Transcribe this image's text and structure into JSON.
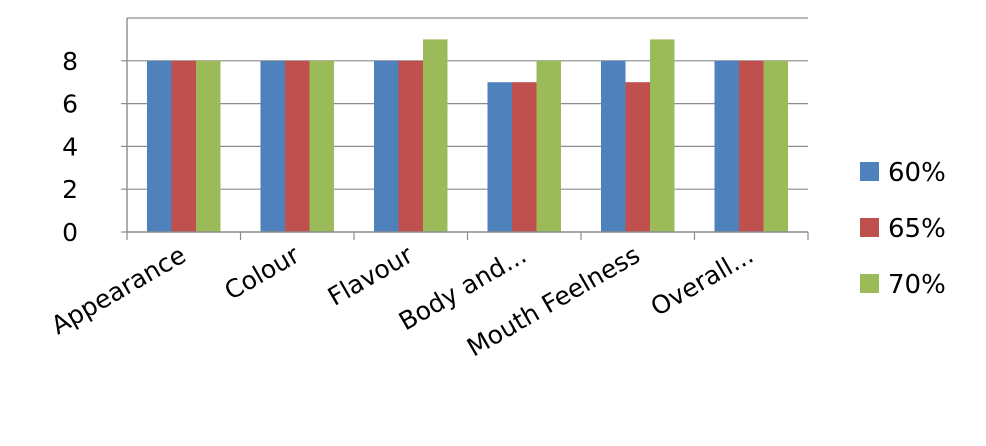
{
  "chart_data": {
    "type": "bar",
    "categories": [
      "Appearance",
      "Colour",
      "Flavour",
      "Body and...",
      "Mouth Feelness",
      "Overall..."
    ],
    "series": [
      {
        "name": "60%",
        "values": [
          8,
          8,
          8,
          7,
          8,
          8
        ],
        "color": "#4F81BD"
      },
      {
        "name": "65%",
        "values": [
          8,
          8,
          8,
          7,
          7,
          8
        ],
        "color": "#C0504D"
      },
      {
        "name": "70%",
        "values": [
          8,
          8,
          9,
          8,
          9,
          8
        ],
        "color": "#9BBB59"
      }
    ],
    "yticks": [
      "0",
      "2",
      "4",
      "6",
      "8"
    ],
    "ylim": [
      0,
      10
    ],
    "grid": true,
    "legend_position": "right",
    "title": "",
    "xlabel": "",
    "ylabel": ""
  }
}
